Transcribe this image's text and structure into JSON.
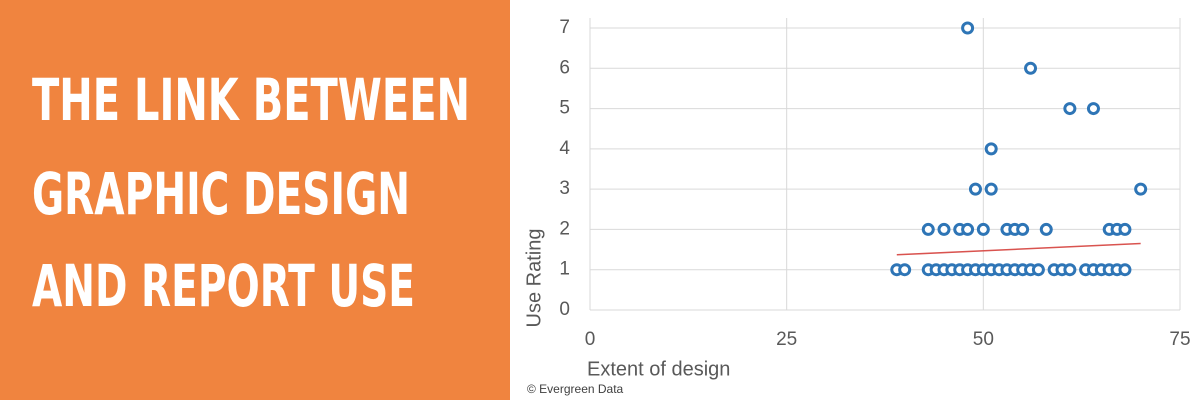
{
  "banner": {
    "title_lines": [
      "THE LINK BETWEEN",
      "GRAPHIC DESIGN",
      "AND REPORT USE"
    ]
  },
  "credit": "© Evergreen Data",
  "chart_data": {
    "type": "scatter",
    "x_label": "Extent of design",
    "y_label": "Use Rating",
    "x": [
      48,
      56,
      61,
      64,
      51,
      49,
      51,
      70,
      43,
      45,
      47,
      48,
      50,
      53,
      54,
      55,
      58,
      66,
      67,
      68,
      39,
      40,
      43,
      44,
      45,
      46,
      47,
      48,
      49,
      50,
      51,
      52,
      53,
      54,
      55,
      56,
      57,
      59,
      60,
      61,
      63,
      64,
      65,
      66,
      67,
      68
    ],
    "values": [
      7,
      6,
      5,
      5,
      4,
      3,
      3,
      3,
      2,
      2,
      2,
      2,
      2,
      2,
      2,
      2,
      2,
      2,
      2,
      2,
      1,
      1,
      1,
      1,
      1,
      1,
      1,
      1,
      1,
      1,
      1,
      1,
      1,
      1,
      1,
      1,
      1,
      1,
      1,
      1,
      1,
      1,
      1,
      1,
      1,
      1
    ],
    "color": "#2e75b6",
    "trendline": {
      "x": [
        39,
        70
      ],
      "y": [
        1.37,
        1.65
      ],
      "color": "#d9534f"
    },
    "xlim": [
      0,
      75
    ],
    "xticks": [
      0,
      25,
      50,
      75
    ],
    "ylim": [
      0,
      7
    ],
    "yticks": [
      0,
      1,
      2,
      3,
      4,
      5,
      6,
      7
    ],
    "grid": true
  }
}
